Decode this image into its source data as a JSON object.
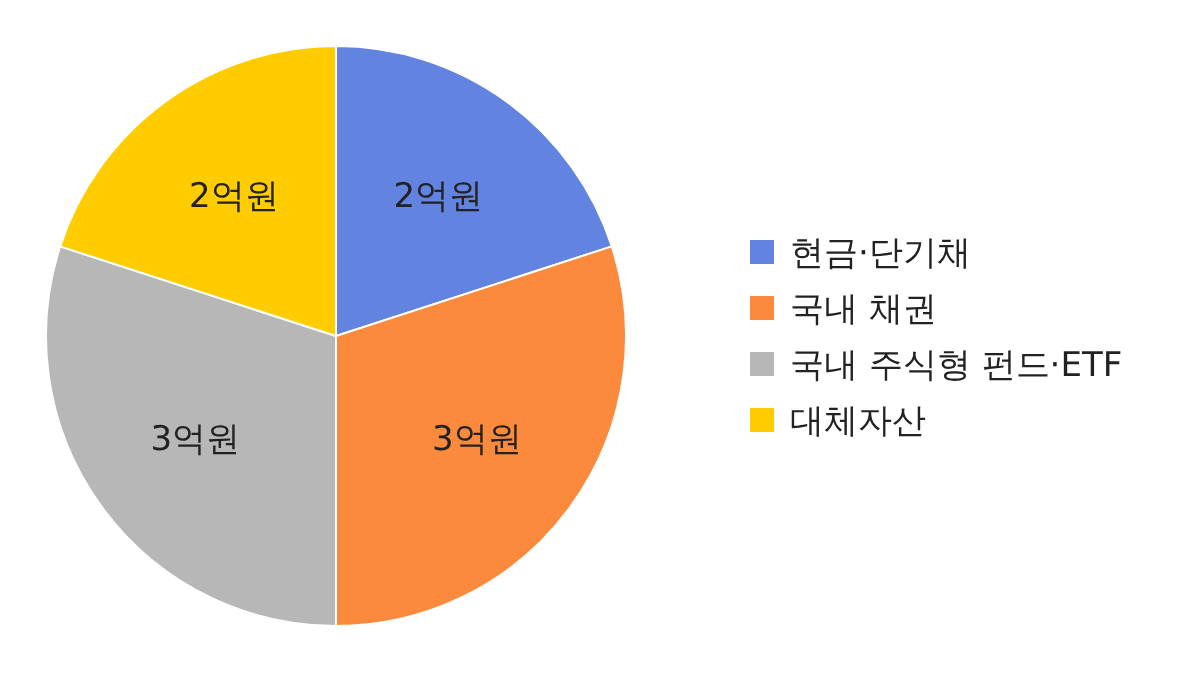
{
  "chart_data": {
    "type": "pie",
    "categories": [
      "현금·단기채",
      "국내 채권",
      "국내 주식형 펀드·ETF",
      "대체자산"
    ],
    "values": [
      2,
      3,
      3,
      2
    ],
    "colors": [
      "#6383e0",
      "#fb8a3c",
      "#b7b7b7",
      "#ffcc00"
    ],
    "value_labels": [
      "2억원",
      "3억원",
      "3억원",
      "2억원"
    ],
    "legend": "right"
  }
}
